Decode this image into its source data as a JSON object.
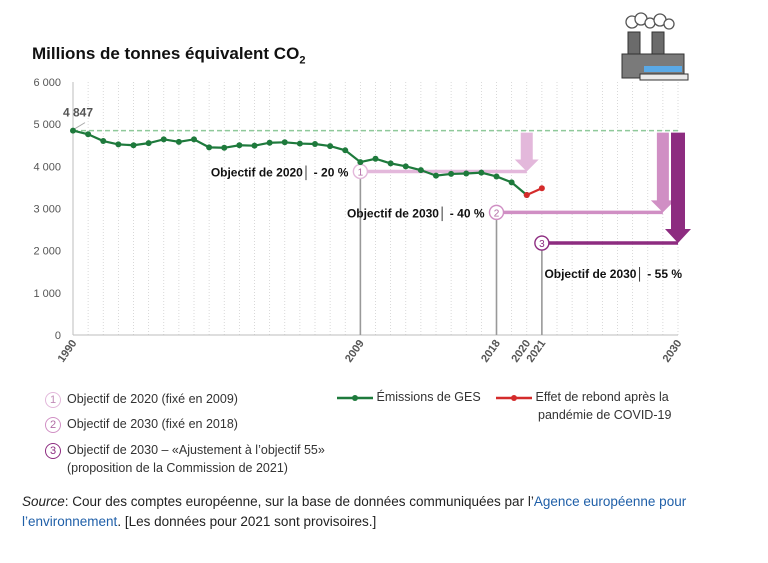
{
  "title": "Millions de tonnes équivalent CO",
  "title_sub": "2",
  "chart_data": {
    "type": "line",
    "xlim": [
      1990,
      2030
    ],
    "ylim": [
      0,
      6000
    ],
    "yticks": [
      0,
      1000,
      2000,
      3000,
      4000,
      5000,
      6000
    ],
    "ytick_labels": [
      "0",
      "1 000",
      "2 000",
      "3 000",
      "4 000",
      "5 000",
      "6 000"
    ],
    "xtick_labels": [
      "1990",
      "2009",
      "2018",
      "2020",
      "2021",
      "2030"
    ],
    "xtick_values": [
      1990,
      2009,
      2018,
      2020,
      2021,
      2030
    ],
    "grid": "vertical dotted",
    "series": [
      {
        "name": "Émissions de GES",
        "color": "#1e7a3c",
        "x": [
          1990,
          1991,
          1992,
          1993,
          1994,
          1995,
          1996,
          1997,
          1998,
          1999,
          2000,
          2001,
          2002,
          2003,
          2004,
          2005,
          2006,
          2007,
          2008,
          2009,
          2010,
          2011,
          2012,
          2013,
          2014,
          2015,
          2016,
          2017,
          2018,
          2019,
          2020
        ],
        "y": [
          4847,
          4760,
          4600,
          4520,
          4500,
          4550,
          4640,
          4580,
          4640,
          4450,
          4440,
          4500,
          4490,
          4560,
          4570,
          4540,
          4530,
          4480,
          4380,
          4100,
          4180,
          4070,
          4000,
          3910,
          3780,
          3820,
          3830,
          3850,
          3760,
          3620,
          3320
        ]
      },
      {
        "name": "Effet de rebond après la pandémie de COVID-19",
        "color": "#d42b2b",
        "x": [
          2020,
          2021
        ],
        "y": [
          3320,
          3480
        ]
      }
    ],
    "reference_line": {
      "value": 4847,
      "label": "4 847",
      "color": "#8fc99a"
    },
    "targets": [
      {
        "num": "1",
        "label": "Objectif de 2020│ - 20 %",
        "value": 3878,
        "color": "#e3b8db",
        "arrow_x": 2020
      },
      {
        "num": "2",
        "label": "Objectif de 2030│ - 40 %",
        "value": 2908,
        "color": "#d08fc4",
        "arrow_x": 2029
      },
      {
        "num": "3",
        "label": "Objectif de 2030│ - 55 %",
        "value": 2181,
        "color": "#8d2c80",
        "arrow_x": 2030
      }
    ]
  },
  "legend": {
    "targets": [
      {
        "num": "1",
        "label": "Objectif de 2020 (fixé en 2009)"
      },
      {
        "num": "2",
        "label": "Objectif de 2030 (fixé en 2018)"
      },
      {
        "num": "3",
        "label": "Objectif de 2030 – «Ajustement à l’objectif 55»",
        "label2": "(proposition de la Commission de 2021)"
      }
    ],
    "series": [
      {
        "label": "Émissions de GES"
      },
      {
        "label": "Effet de rebond après la",
        "label2": "pandémie de COVID-19"
      }
    ]
  },
  "source": {
    "label": "Source",
    "text1": ": Cour des comptes européenne, sur la base de données communiquées par l’",
    "link": "Agence européenne pour l’environnement",
    "text2": ". [Les données pour 2021 sont provisoires.]"
  },
  "colors": {
    "target1": "#e3b8db",
    "target2": "#d08fc4",
    "target3": "#8d2c80",
    "factory": "#6b6b6b"
  },
  "icons": [
    "factory-icon"
  ]
}
